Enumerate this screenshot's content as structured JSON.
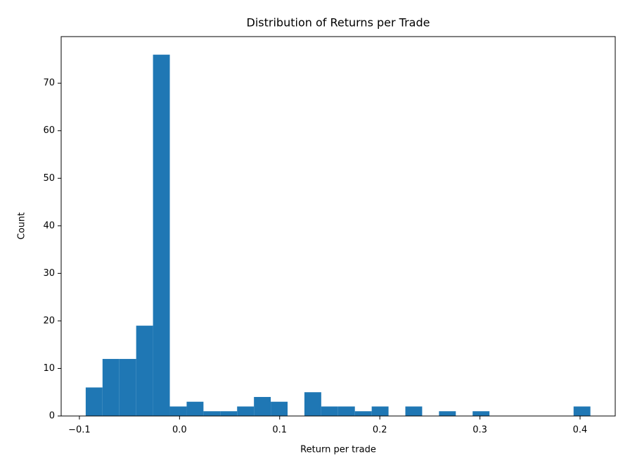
{
  "chart_data": {
    "type": "histogram",
    "title": "Distribution of Returns per Trade",
    "x_label": "Return per trade",
    "y_label": "Count",
    "bins": [
      -0.0937,
      -0.0769,
      -0.0601,
      -0.0433,
      -0.0265,
      -0.0097,
      0.0071,
      0.0239,
      0.0407,
      0.0575,
      0.0743,
      0.0911,
      0.1079,
      0.1247,
      0.1415,
      0.1583,
      0.1751,
      0.1919,
      0.2087,
      0.2255,
      0.2423,
      0.2591,
      0.2759,
      0.2927,
      0.3095,
      0.3263,
      0.3431,
      0.3599,
      0.3767,
      0.3935,
      0.4103
    ],
    "values": [
      6,
      12,
      12,
      19,
      76,
      2,
      3,
      1,
      1,
      2,
      4,
      3,
      0,
      5,
      2,
      2,
      1,
      2,
      0,
      2,
      0,
      1,
      0,
      1,
      0,
      0,
      0,
      0,
      0,
      2
    ],
    "color": "#1f77b4",
    "xlim": [
      -0.1182,
      0.4351
    ],
    "xticks": [
      {
        "value": -0.1,
        "label": "−0.1"
      },
      {
        "value": 0,
        "label": "0.0"
      },
      0.1,
      0.2,
      0.3,
      0.4
    ],
    "ylim": [
      0,
      79.8
    ],
    "yticks": [
      0,
      10,
      20,
      30,
      40,
      50,
      60,
      70
    ]
  }
}
